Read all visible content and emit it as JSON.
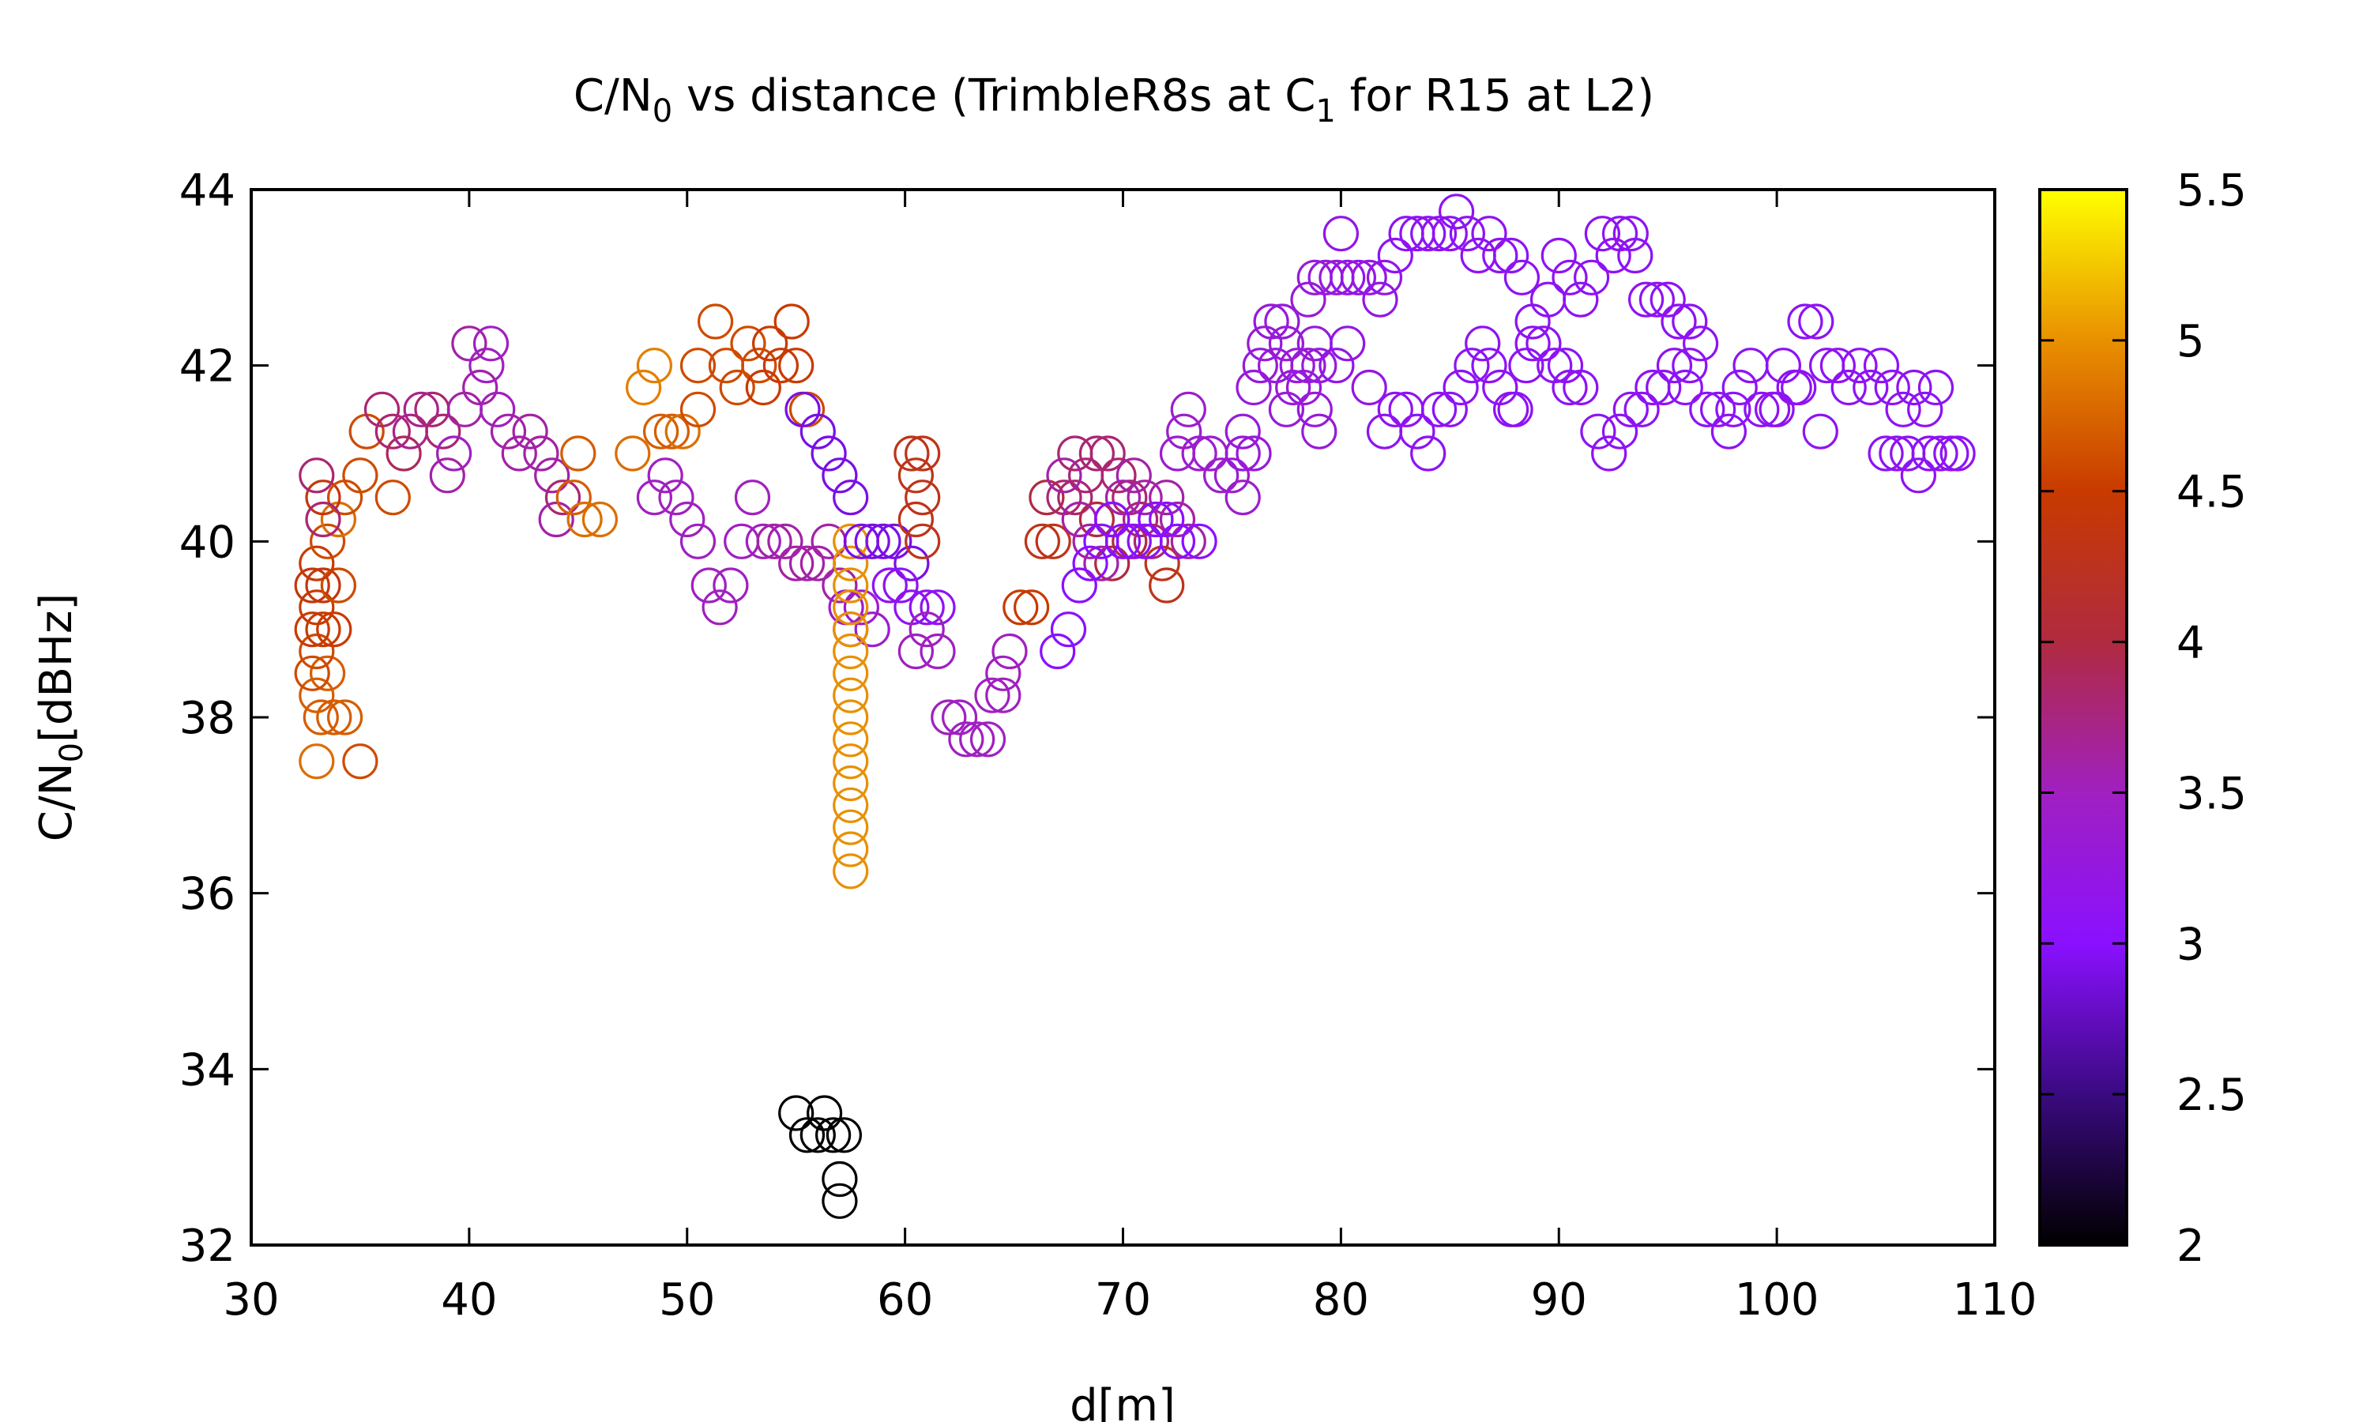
{
  "chart_data": {
    "type": "scatter",
    "title": {
      "pre": "C/N",
      "sub": "0",
      "mid": " vs distance (TrimbleR8s at C",
      "sub2": "1",
      "post": " for R15 at L2)"
    },
    "xlabel": "d[m]",
    "ylabel": {
      "pre": "C/N",
      "sub": "0",
      "post": "[dBHz]"
    },
    "xlim": [
      30,
      110
    ],
    "ylim": [
      32,
      44
    ],
    "xticks": [
      "30",
      "40",
      "50",
      "60",
      "70",
      "80",
      "90",
      "100",
      "110"
    ],
    "yticks": [
      "32",
      "34",
      "36",
      "38",
      "40",
      "42",
      "44"
    ],
    "colorbar": {
      "range": [
        2,
        5.5
      ],
      "ticks": [
        "2",
        "2.5",
        "3",
        "3.5",
        "4",
        "4.5",
        "5",
        "5.5"
      ]
    },
    "points": [
      [
        55.0,
        33.5,
        2.0
      ],
      [
        55.5,
        33.25,
        2.0
      ],
      [
        56.0,
        33.25,
        2.0
      ],
      [
        56.3,
        33.5,
        2.0
      ],
      [
        56.7,
        33.25,
        2.0
      ],
      [
        57.0,
        32.75,
        2.0
      ],
      [
        57.2,
        33.25,
        2.0
      ],
      [
        57.0,
        32.5,
        2.0
      ],
      [
        33.0,
        37.5,
        4.8
      ],
      [
        35.0,
        37.5,
        4.6
      ],
      [
        33.2,
        38.0,
        4.7
      ],
      [
        33.8,
        38.0,
        4.7
      ],
      [
        34.3,
        38.0,
        4.7
      ],
      [
        33.0,
        38.25,
        4.7
      ],
      [
        33.5,
        38.5,
        4.7
      ],
      [
        32.8,
        38.5,
        4.6
      ],
      [
        33.0,
        38.75,
        4.6
      ],
      [
        32.8,
        39.0,
        4.5
      ],
      [
        33.3,
        39.0,
        4.5
      ],
      [
        33.8,
        39.0,
        4.5
      ],
      [
        33.0,
        39.25,
        4.5
      ],
      [
        32.8,
        39.5,
        4.4
      ],
      [
        33.3,
        39.5,
        4.4
      ],
      [
        34.0,
        39.5,
        4.6
      ],
      [
        33.0,
        39.75,
        4.5
      ],
      [
        33.5,
        40.0,
        4.6
      ],
      [
        34.0,
        40.25,
        4.8
      ],
      [
        33.3,
        40.5,
        4.4
      ],
      [
        34.3,
        40.5,
        4.6
      ],
      [
        35.0,
        40.75,
        4.6
      ],
      [
        35.3,
        41.25,
        4.6
      ],
      [
        36.5,
        40.5,
        4.6
      ],
      [
        33.0,
        40.75,
        3.8
      ],
      [
        33.3,
        40.25,
        3.8
      ],
      [
        36.0,
        41.5,
        3.8
      ],
      [
        36.5,
        41.25,
        3.8
      ],
      [
        37.0,
        41.0,
        3.9
      ],
      [
        37.3,
        41.25,
        3.7
      ],
      [
        37.8,
        41.5,
        3.7
      ],
      [
        38.3,
        41.5,
        3.8
      ],
      [
        38.8,
        41.25,
        3.8
      ],
      [
        39.3,
        41.0,
        3.5
      ],
      [
        39.8,
        41.5,
        3.6
      ],
      [
        40.0,
        42.25,
        3.6
      ],
      [
        40.5,
        41.75,
        3.6
      ],
      [
        40.8,
        42.0,
        3.5
      ],
      [
        41.0,
        42.25,
        3.5
      ],
      [
        41.3,
        41.5,
        3.5
      ],
      [
        41.8,
        41.25,
        3.6
      ],
      [
        42.3,
        41.0,
        3.6
      ],
      [
        42.8,
        41.25,
        3.6
      ],
      [
        43.3,
        41.0,
        3.6
      ],
      [
        43.8,
        40.75,
        3.6
      ],
      [
        44.3,
        40.5,
        3.8
      ],
      [
        44.0,
        40.25,
        3.6
      ],
      [
        39.0,
        40.75,
        3.6
      ],
      [
        45.0,
        41.0,
        4.7
      ],
      [
        44.8,
        40.5,
        4.7
      ],
      [
        45.3,
        40.25,
        4.8
      ],
      [
        46.0,
        40.25,
        4.8
      ],
      [
        47.5,
        41.0,
        4.8
      ],
      [
        48.0,
        41.75,
        4.9
      ],
      [
        48.5,
        42.0,
        4.9
      ],
      [
        48.8,
        41.25,
        4.7
      ],
      [
        49.3,
        41.25,
        4.7
      ],
      [
        49.8,
        41.25,
        4.8
      ],
      [
        50.5,
        41.5,
        4.6
      ],
      [
        50.5,
        42.0,
        4.6
      ],
      [
        51.3,
        42.5,
        4.6
      ],
      [
        51.8,
        42.0,
        4.6
      ],
      [
        52.3,
        41.75,
        4.6
      ],
      [
        52.8,
        42.25,
        4.6
      ],
      [
        53.3,
        42.0,
        4.6
      ],
      [
        53.8,
        42.25,
        4.5
      ],
      [
        54.3,
        42.0,
        4.5
      ],
      [
        54.8,
        42.5,
        4.5
      ],
      [
        55.0,
        42.0,
        4.5
      ],
      [
        55.5,
        41.5,
        4.6
      ],
      [
        53.5,
        41.75,
        4.5
      ],
      [
        48.5,
        40.5,
        3.5
      ],
      [
        49.0,
        40.75,
        3.5
      ],
      [
        49.5,
        40.5,
        3.5
      ],
      [
        50.0,
        40.25,
        3.5
      ],
      [
        50.5,
        40.0,
        3.5
      ],
      [
        51.0,
        39.5,
        3.5
      ],
      [
        51.5,
        39.25,
        3.5
      ],
      [
        52.0,
        39.5,
        3.5
      ],
      [
        52.5,
        40.0,
        3.5
      ],
      [
        53.0,
        40.5,
        3.5
      ],
      [
        53.5,
        40.0,
        3.5
      ],
      [
        54.0,
        40.0,
        3.6
      ],
      [
        54.5,
        40.0,
        3.6
      ],
      [
        55.0,
        39.75,
        3.6
      ],
      [
        55.5,
        39.75,
        3.6
      ],
      [
        56.0,
        39.75,
        3.6
      ],
      [
        56.5,
        40.0,
        3.6
      ],
      [
        57.0,
        39.5,
        3.6
      ],
      [
        57.3,
        39.25,
        3.4
      ],
      [
        57.5,
        39.0,
        3.4
      ],
      [
        58.0,
        39.25,
        3.4
      ],
      [
        58.5,
        39.0,
        3.4
      ],
      [
        57.5,
        36.25,
        5.0
      ],
      [
        57.5,
        36.5,
        5.0
      ],
      [
        57.5,
        36.75,
        5.0
      ],
      [
        57.5,
        37.0,
        5.0
      ],
      [
        57.5,
        37.25,
        5.0
      ],
      [
        57.5,
        37.5,
        5.0
      ],
      [
        57.5,
        37.75,
        5.0
      ],
      [
        57.5,
        38.0,
        5.0
      ],
      [
        57.5,
        38.25,
        5.0
      ],
      [
        57.5,
        38.5,
        5.0
      ],
      [
        57.5,
        38.75,
        5.0
      ],
      [
        57.5,
        39.0,
        5.0
      ],
      [
        57.5,
        39.25,
        5.0
      ],
      [
        57.5,
        39.5,
        5.0
      ],
      [
        57.5,
        39.75,
        5.0
      ],
      [
        57.5,
        40.0,
        5.0
      ],
      [
        55.3,
        41.5,
        2.9
      ],
      [
        56.0,
        41.25,
        2.9
      ],
      [
        56.5,
        41.0,
        2.9
      ],
      [
        57.0,
        40.75,
        2.9
      ],
      [
        57.5,
        40.5,
        2.9
      ],
      [
        58.0,
        40.0,
        2.9
      ],
      [
        58.5,
        40.0,
        2.9
      ],
      [
        59.0,
        40.0,
        2.9
      ],
      [
        59.5,
        40.0,
        2.9
      ],
      [
        60.3,
        39.75,
        2.9
      ],
      [
        59.3,
        39.5,
        3.1
      ],
      [
        59.8,
        39.5,
        3.1
      ],
      [
        60.3,
        39.25,
        3.1
      ],
      [
        61.0,
        39.25,
        3.1
      ],
      [
        61.5,
        39.25,
        3.1
      ],
      [
        60.3,
        41.0,
        4.3
      ],
      [
        60.8,
        41.0,
        4.3
      ],
      [
        60.5,
        40.75,
        4.3
      ],
      [
        60.8,
        40.5,
        4.3
      ],
      [
        60.5,
        40.25,
        4.3
      ],
      [
        60.8,
        40.0,
        4.3
      ],
      [
        60.5,
        38.75,
        3.5
      ],
      [
        61.0,
        39.0,
        3.5
      ],
      [
        61.5,
        38.75,
        3.5
      ],
      [
        62.0,
        38.0,
        3.5
      ],
      [
        62.5,
        38.0,
        3.5
      ],
      [
        62.8,
        37.75,
        3.5
      ],
      [
        63.3,
        37.75,
        3.5
      ],
      [
        63.8,
        37.75,
        3.5
      ],
      [
        64.0,
        38.25,
        3.5
      ],
      [
        64.5,
        38.25,
        3.5
      ],
      [
        64.5,
        38.5,
        3.5
      ],
      [
        64.8,
        38.75,
        3.5
      ],
      [
        65.3,
        39.25,
        4.5
      ],
      [
        65.8,
        39.25,
        4.5
      ],
      [
        66.3,
        40.0,
        4.3
      ],
      [
        66.8,
        40.0,
        4.3
      ],
      [
        66.5,
        40.5,
        4.0
      ],
      [
        67.3,
        40.5,
        3.8
      ],
      [
        67.8,
        40.5,
        3.8
      ],
      [
        68.3,
        40.75,
        3.8
      ],
      [
        68.8,
        41.0,
        3.8
      ],
      [
        69.3,
        41.0,
        3.8
      ],
      [
        69.8,
        40.75,
        3.8
      ],
      [
        70.3,
        40.5,
        3.8
      ],
      [
        70.8,
        40.25,
        3.8
      ],
      [
        71.3,
        40.0,
        3.8
      ],
      [
        71.8,
        39.75,
        4.3
      ],
      [
        72.0,
        39.5,
        4.3
      ],
      [
        69.5,
        39.75,
        4.0
      ],
      [
        70.3,
        40.0,
        4.0
      ],
      [
        68.8,
        40.25,
        4.0
      ],
      [
        67.8,
        41.0,
        3.8
      ],
      [
        67.3,
        40.75,
        3.6
      ],
      [
        68.0,
        40.25,
        3.6
      ],
      [
        68.5,
        40.0,
        3.6
      ],
      [
        69.0,
        39.75,
        3.6
      ],
      [
        69.5,
        40.25,
        3.6
      ],
      [
        70.0,
        40.5,
        3.6
      ],
      [
        70.5,
        40.75,
        3.6
      ],
      [
        71.0,
        40.5,
        3.6
      ],
      [
        71.5,
        40.25,
        3.6
      ],
      [
        72.0,
        40.5,
        3.6
      ],
      [
        72.5,
        40.25,
        3.6
      ],
      [
        73.0,
        40.0,
        3.6
      ],
      [
        67.0,
        38.75,
        3.0
      ],
      [
        67.5,
        39.0,
        3.0
      ],
      [
        68.0,
        39.5,
        3.0
      ],
      [
        68.5,
        39.75,
        3.0
      ],
      [
        69.0,
        40.0,
        3.0
      ],
      [
        69.5,
        40.25,
        3.0
      ],
      [
        70.0,
        40.0,
        3.0
      ],
      [
        70.5,
        40.0,
        3.0
      ],
      [
        71.0,
        40.0,
        3.0
      ],
      [
        71.5,
        40.25,
        3.0
      ],
      [
        72.0,
        40.25,
        3.0
      ],
      [
        72.5,
        40.0,
        3.0
      ],
      [
        73.5,
        40.0,
        3.0
      ],
      [
        72.5,
        41.0,
        3.4
      ],
      [
        72.8,
        41.25,
        3.4
      ],
      [
        73.0,
        41.5,
        3.4
      ],
      [
        73.5,
        41.0,
        3.4
      ],
      [
        74.0,
        41.0,
        3.4
      ],
      [
        74.5,
        40.75,
        3.4
      ],
      [
        75.0,
        40.75,
        3.4
      ],
      [
        75.5,
        40.5,
        3.4
      ],
      [
        75.5,
        41.0,
        3.3
      ],
      [
        75.5,
        41.25,
        3.3
      ],
      [
        76.0,
        41.0,
        3.3
      ],
      [
        76.0,
        41.75,
        3.3
      ],
      [
        76.3,
        42.0,
        3.3
      ],
      [
        76.5,
        42.25,
        3.3
      ],
      [
        76.8,
        42.5,
        3.3
      ],
      [
        77.0,
        42.0,
        3.3
      ],
      [
        77.3,
        42.5,
        3.3
      ],
      [
        77.5,
        42.25,
        3.3
      ],
      [
        77.5,
        41.5,
        3.3
      ],
      [
        77.8,
        41.75,
        3.3
      ],
      [
        78.0,
        42.0,
        3.3
      ],
      [
        78.3,
        41.75,
        3.3
      ],
      [
        78.5,
        42.0,
        3.3
      ],
      [
        78.8,
        41.5,
        3.3
      ],
      [
        79.0,
        42.0,
        3.3
      ],
      [
        79.0,
        41.25,
        3.3
      ],
      [
        78.8,
        42.25,
        3.3
      ],
      [
        78.5,
        42.75,
        3.3
      ],
      [
        78.8,
        43.0,
        3.3
      ],
      [
        79.3,
        43.0,
        3.3
      ],
      [
        79.8,
        43.0,
        3.3
      ],
      [
        80.0,
        43.5,
        3.2
      ],
      [
        80.3,
        43.0,
        3.2
      ],
      [
        80.8,
        43.0,
        3.2
      ],
      [
        81.3,
        43.0,
        3.2
      ],
      [
        81.8,
        42.75,
        3.2
      ],
      [
        82.0,
        43.0,
        3.2
      ],
      [
        80.3,
        42.25,
        3.2
      ],
      [
        79.8,
        42.0,
        3.2
      ],
      [
        81.3,
        41.75,
        3.2
      ],
      [
        82.0,
        41.25,
        3.1
      ],
      [
        82.5,
        41.5,
        3.1
      ],
      [
        83.0,
        41.5,
        3.1
      ],
      [
        83.5,
        41.25,
        3.1
      ],
      [
        84.0,
        41.0,
        3.1
      ],
      [
        84.5,
        41.5,
        3.1
      ],
      [
        85.0,
        41.5,
        3.1
      ],
      [
        85.5,
        41.75,
        3.1
      ],
      [
        86.0,
        42.0,
        3.1
      ],
      [
        86.5,
        42.25,
        3.1
      ],
      [
        86.8,
        42.0,
        3.1
      ],
      [
        87.3,
        41.75,
        3.1
      ],
      [
        87.8,
        41.5,
        3.1
      ],
      [
        88.0,
        41.5,
        3.1
      ],
      [
        88.5,
        42.0,
        3.1
      ],
      [
        88.8,
        42.25,
        3.1
      ],
      [
        82.5,
        43.25,
        3.1
      ],
      [
        83.0,
        43.5,
        3.1
      ],
      [
        83.5,
        43.5,
        3.1
      ],
      [
        84.0,
        43.5,
        3.1
      ],
      [
        84.5,
        43.5,
        3.1
      ],
      [
        85.0,
        43.5,
        3.1
      ],
      [
        85.3,
        43.75,
        3.1
      ],
      [
        85.8,
        43.5,
        3.1
      ],
      [
        86.3,
        43.25,
        3.1
      ],
      [
        86.8,
        43.5,
        3.1
      ],
      [
        87.3,
        43.25,
        3.1
      ],
      [
        87.8,
        43.25,
        3.1
      ],
      [
        88.3,
        43.0,
        3.1
      ],
      [
        88.8,
        42.5,
        3.1
      ],
      [
        89.3,
        42.25,
        3.1
      ],
      [
        89.8,
        42.0,
        3.1
      ],
      [
        90.3,
        42.0,
        3.1
      ],
      [
        89.5,
        42.75,
        3.1
      ],
      [
        90.0,
        43.25,
        3.1
      ],
      [
        90.5,
        43.0,
        3.1
      ],
      [
        91.0,
        42.75,
        3.1
      ],
      [
        91.5,
        43.0,
        3.1
      ],
      [
        92.0,
        43.5,
        3.1
      ],
      [
        92.5,
        43.25,
        3.1
      ],
      [
        92.8,
        43.5,
        3.1
      ],
      [
        93.3,
        43.5,
        3.1
      ],
      [
        93.5,
        43.25,
        3.1
      ],
      [
        94.0,
        42.75,
        3.1
      ],
      [
        94.5,
        42.75,
        3.1
      ],
      [
        95.0,
        42.75,
        3.1
      ],
      [
        95.5,
        42.5,
        3.1
      ],
      [
        96.0,
        42.5,
        3.1
      ],
      [
        96.5,
        42.25,
        3.1
      ],
      [
        96.0,
        42.0,
        3.1
      ],
      [
        90.5,
        41.75,
        3.1
      ],
      [
        91.0,
        41.75,
        3.1
      ],
      [
        91.8,
        41.25,
        3.1
      ],
      [
        92.3,
        41.0,
        3.1
      ],
      [
        92.8,
        41.25,
        3.1
      ],
      [
        93.3,
        41.5,
        3.1
      ],
      [
        93.8,
        41.5,
        3.1
      ],
      [
        94.3,
        41.75,
        3.1
      ],
      [
        94.8,
        41.75,
        3.1
      ],
      [
        95.3,
        42.0,
        3.1
      ],
      [
        95.8,
        41.75,
        3.1
      ],
      [
        96.8,
        41.5,
        3.1
      ],
      [
        97.3,
        41.5,
        3.1
      ],
      [
        97.8,
        41.25,
        3.1
      ],
      [
        98.0,
        41.5,
        3.1
      ],
      [
        98.3,
        41.75,
        3.1
      ],
      [
        98.8,
        42.0,
        3.1
      ],
      [
        99.3,
        41.5,
        3.1
      ],
      [
        99.8,
        41.5,
        3.1
      ],
      [
        100.3,
        42.0,
        3.1
      ],
      [
        100.8,
        41.75,
        3.1
      ],
      [
        101.3,
        42.5,
        3.1
      ],
      [
        101.8,
        42.5,
        3.1
      ],
      [
        102.3,
        42.0,
        3.1
      ],
      [
        102.8,
        42.0,
        3.1
      ],
      [
        103.3,
        41.75,
        3.1
      ],
      [
        103.8,
        42.0,
        3.1
      ],
      [
        104.3,
        41.75,
        3.1
      ],
      [
        104.8,
        42.0,
        3.1
      ],
      [
        105.3,
        41.75,
        3.1
      ],
      [
        105.8,
        41.5,
        3.1
      ],
      [
        106.3,
        41.75,
        3.1
      ],
      [
        106.8,
        41.5,
        3.1
      ],
      [
        107.3,
        41.75,
        3.1
      ],
      [
        105.0,
        41.0,
        3.1
      ],
      [
        105.5,
        41.0,
        3.1
      ],
      [
        106.0,
        41.0,
        3.1
      ],
      [
        106.5,
        40.75,
        3.1
      ],
      [
        107.0,
        41.0,
        3.1
      ],
      [
        107.5,
        41.0,
        3.1
      ],
      [
        108.0,
        41.0,
        3.1
      ],
      [
        108.3,
        41.0,
        3.1
      ],
      [
        100.0,
        41.5,
        3.1
      ],
      [
        101.0,
        41.75,
        3.1
      ],
      [
        102.0,
        41.25,
        3.1
      ]
    ]
  }
}
